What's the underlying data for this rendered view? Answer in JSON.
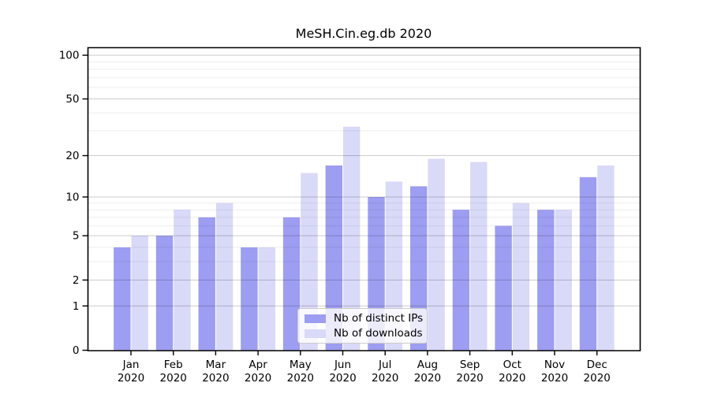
{
  "chart_data": {
    "type": "bar",
    "title": "MeSH.Cin.eg.db 2020",
    "categories": [
      "Jan",
      "Feb",
      "Mar",
      "Apr",
      "May",
      "Jun",
      "Jul",
      "Aug",
      "Sep",
      "Oct",
      "Nov",
      "Dec"
    ],
    "category_year_label": "2020",
    "series": [
      {
        "name": "Nb of distinct IPs",
        "color": "#9d9df1",
        "values": [
          4,
          5,
          7,
          4,
          7,
          17,
          10,
          12,
          8,
          6,
          8,
          14
        ]
      },
      {
        "name": "Nb of downloads",
        "color": "#d9d9f8",
        "values": [
          5,
          8,
          9,
          4,
          15,
          32,
          13,
          19,
          18,
          9,
          8,
          17
        ]
      }
    ],
    "yscale": "log10(value+1)",
    "yticks": [
      0,
      1,
      2,
      5,
      10,
      20,
      50,
      100
    ],
    "yticks_minor": [
      3,
      4,
      6,
      7,
      8,
      9,
      30,
      40,
      60,
      70,
      80,
      90
    ],
    "ylim": [
      0,
      112
    ],
    "grid": true,
    "legend_position": "lower-center"
  },
  "colors": {
    "background": "#ffffff",
    "spine": "#000000",
    "major_grid": "rgba(0,0,0,0.20)",
    "minor_grid": "rgba(0,0,0,0.065)",
    "tick_text": "#000000"
  }
}
